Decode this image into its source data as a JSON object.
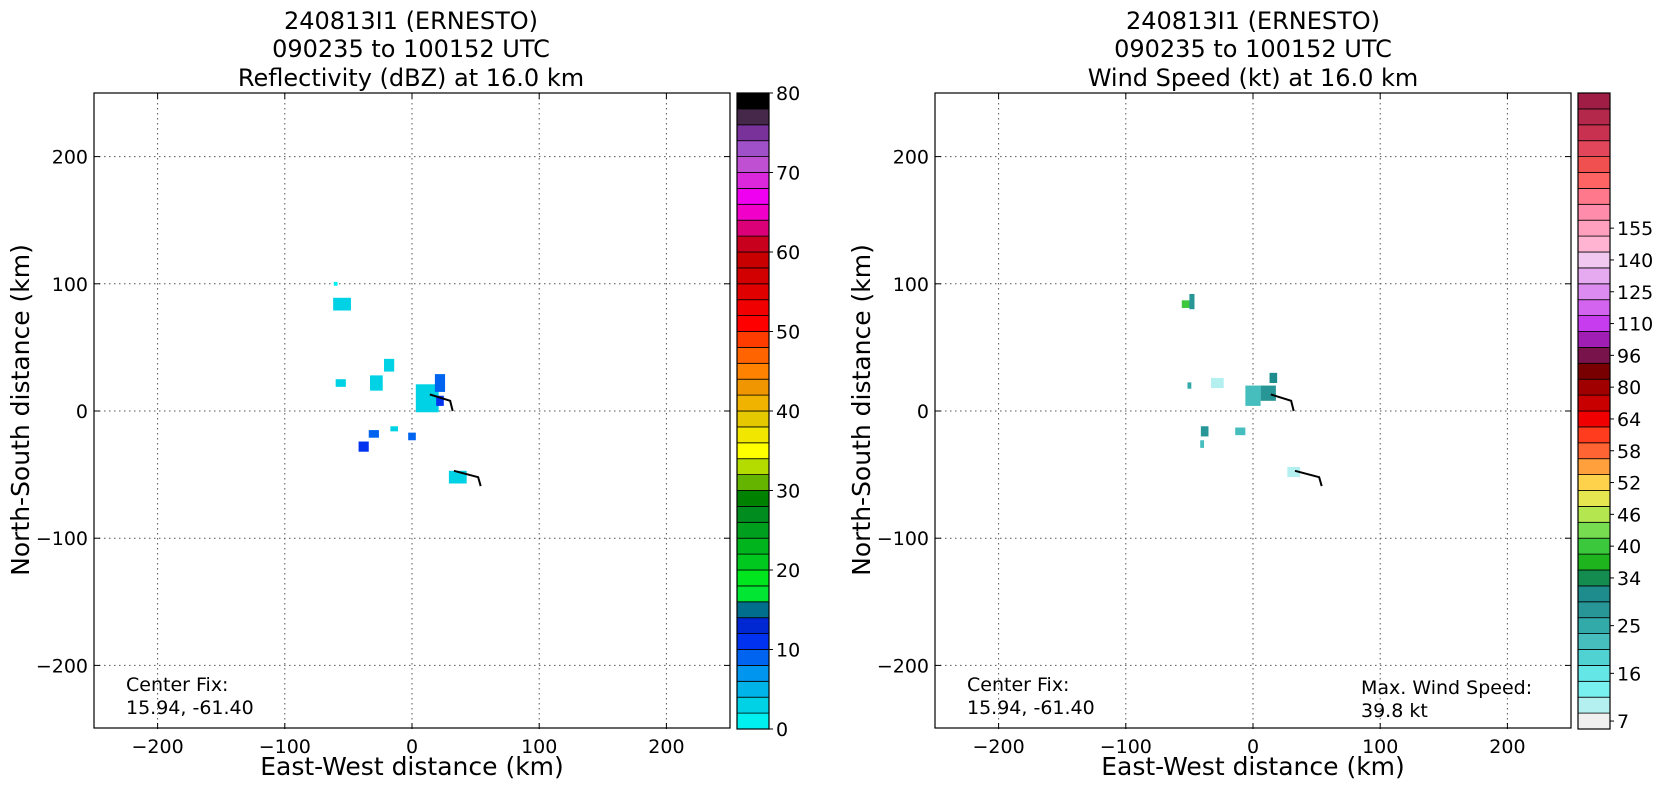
{
  "chart_data": [
    {
      "type": "heatmap",
      "title_lines": [
        "240813I1 (ERNESTO)",
        "090235 to 100152 UTC",
        "Reflectivity (dBZ) at 16.0 km"
      ],
      "xlabel": "East-West distance (km)",
      "ylabel": "North-South distance (km)",
      "xlim": [
        -250,
        250
      ],
      "ylim": [
        -250,
        250
      ],
      "x_ticks": [
        "−200",
        "−100",
        "0",
        "100",
        "200"
      ],
      "y_ticks": [
        "200",
        "100",
        "0",
        "−100",
        "−200"
      ],
      "grid": true,
      "center_fix_label": "Center Fix:",
      "center_fix_value": "15.94, -61.40",
      "colorbar": {
        "min": 0,
        "max": 80,
        "tick_labels": [
          "0",
          "10",
          "20",
          "30",
          "40",
          "50",
          "60",
          "70",
          "80"
        ],
        "colors": [
          "#00f0f0",
          "#00d2e6",
          "#00b4ea",
          "#0096f0",
          "#0064f0",
          "#0032f0",
          "#0028d2",
          "#006e8c",
          "#00e632",
          "#00e61e",
          "#00c81e",
          "#00b41e",
          "#00a01e",
          "#008c1e",
          "#008200",
          "#64b400",
          "#b4dc00",
          "#ffff00",
          "#f0e600",
          "#e6c800",
          "#f0b400",
          "#f09600",
          "#ff8200",
          "#ff6400",
          "#ff3c00",
          "#ff0000",
          "#f00000",
          "#e10000",
          "#d20000",
          "#c80000",
          "#c8001e",
          "#dc0078",
          "#f000c8",
          "#f000f0",
          "#dc28dc",
          "#c050d2",
          "#a050c8",
          "#78329a",
          "#46284a",
          "#000000"
        ]
      },
      "echo_cells": [
        {
          "x": -55,
          "y": 84,
          "w": 14,
          "h": 10,
          "color": "#00d2e6"
        },
        {
          "x": -60,
          "y": 100,
          "w": 3,
          "h": 3,
          "color": "#00f0f0"
        },
        {
          "x": -56,
          "y": 22,
          "w": 8,
          "h": 6,
          "color": "#00d2e6"
        },
        {
          "x": -28,
          "y": 22,
          "w": 10,
          "h": 12,
          "color": "#00d2e6"
        },
        {
          "x": -18,
          "y": 36,
          "w": 8,
          "h": 10,
          "color": "#00d2e6"
        },
        {
          "x": 12,
          "y": 10,
          "w": 18,
          "h": 22,
          "color": "#00d2e6"
        },
        {
          "x": 22,
          "y": 22,
          "w": 8,
          "h": 14,
          "color": "#0064f0"
        },
        {
          "x": 22,
          "y": 8,
          "w": 6,
          "h": 8,
          "color": "#0032f0"
        },
        {
          "x": -30,
          "y": -18,
          "w": 8,
          "h": 6,
          "color": "#0064f0"
        },
        {
          "x": -38,
          "y": -28,
          "w": 8,
          "h": 8,
          "color": "#0032f0"
        },
        {
          "x": -14,
          "y": -14,
          "w": 6,
          "h": 4,
          "color": "#00d2e6"
        },
        {
          "x": 0,
          "y": -20,
          "w": 6,
          "h": 6,
          "color": "#0064f0"
        },
        {
          "x": 36,
          "y": -52,
          "w": 14,
          "h": 10,
          "color": "#00d2e6"
        }
      ],
      "flight_track": [
        [
          14,
          13
        ],
        [
          30,
          8
        ],
        [
          32,
          0
        ]
      ],
      "flight_track_2": [
        [
          33,
          -47
        ],
        [
          52,
          -52
        ],
        [
          54,
          -59
        ]
      ]
    },
    {
      "type": "heatmap",
      "title_lines": [
        "240813I1 (ERNESTO)",
        "090235 to 100152 UTC",
        "Wind Speed (kt) at 16.0 km"
      ],
      "xlabel": "East-West distance (km)",
      "ylabel": "North-South distance (km)",
      "xlim": [
        -250,
        250
      ],
      "ylim": [
        -250,
        250
      ],
      "x_ticks": [
        "−200",
        "−100",
        "0",
        "100",
        "200"
      ],
      "y_ticks": [
        "200",
        "100",
        "0",
        "−100",
        "−200"
      ],
      "grid": true,
      "center_fix_label": "Center Fix:",
      "center_fix_value": "15.94, -61.40",
      "max_wind_label": "Max. Wind Speed:",
      "max_wind_value": "39.8 kt",
      "colorbar": {
        "tick_labels": [
          "7",
          "16",
          "25",
          "34",
          "40",
          "46",
          "52",
          "58",
          "64",
          "80",
          "96",
          "110",
          "125",
          "140",
          "155"
        ],
        "tick_bins": [
          0,
          3,
          6,
          9,
          11,
          13,
          15,
          17,
          19,
          21,
          23,
          25,
          27,
          29,
          31
        ],
        "colors": [
          "#f0f0f0",
          "#b4f0f0",
          "#78f0f0",
          "#64e6e6",
          "#50d2d2",
          "#46bebe",
          "#32aaaa",
          "#289696",
          "#1e8c8c",
          "#148c50",
          "#1eb41e",
          "#3cc83c",
          "#78dc50",
          "#b4e650",
          "#e6e650",
          "#ffd24b",
          "#ffa03c",
          "#ff6432",
          "#ff3c1e",
          "#f00000",
          "#c80000",
          "#a00000",
          "#780000",
          "#78144b",
          "#a01eb4",
          "#c83cf0",
          "#d264f0",
          "#dc8cf0",
          "#e6aaf0",
          "#f0c8f0",
          "#ffb4d2",
          "#ffa0be",
          "#ff8caa",
          "#ff788c",
          "#ff6464",
          "#f05050",
          "#e1465a",
          "#c83250",
          "#b4284b",
          "#a01e46"
        ]
      },
      "echo_cells": [
        {
          "x": -52,
          "y": 84,
          "w": 8,
          "h": 6,
          "color": "#3cc83c"
        },
        {
          "x": -48,
          "y": 86,
          "w": 4,
          "h": 12,
          "color": "#289696"
        },
        {
          "x": -50,
          "y": 20,
          "w": 3,
          "h": 5,
          "color": "#32aaaa"
        },
        {
          "x": -28,
          "y": 22,
          "w": 10,
          "h": 8,
          "color": "#b4f0f0"
        },
        {
          "x": 0,
          "y": 12,
          "w": 12,
          "h": 16,
          "color": "#46bebe"
        },
        {
          "x": 12,
          "y": 14,
          "w": 12,
          "h": 12,
          "color": "#289696"
        },
        {
          "x": 16,
          "y": 26,
          "w": 6,
          "h": 8,
          "color": "#1e8c8c"
        },
        {
          "x": -38,
          "y": -16,
          "w": 6,
          "h": 8,
          "color": "#289696"
        },
        {
          "x": -40,
          "y": -26,
          "w": 3,
          "h": 6,
          "color": "#46bebe"
        },
        {
          "x": -10,
          "y": -16,
          "w": 8,
          "h": 6,
          "color": "#46bebe"
        },
        {
          "x": 32,
          "y": -48,
          "w": 10,
          "h": 8,
          "color": "#b4f0f0"
        }
      ],
      "flight_track": [
        [
          14,
          13
        ],
        [
          30,
          8
        ],
        [
          32,
          0
        ]
      ],
      "flight_track_2": [
        [
          33,
          -47
        ],
        [
          52,
          -52
        ],
        [
          54,
          -59
        ]
      ]
    }
  ]
}
